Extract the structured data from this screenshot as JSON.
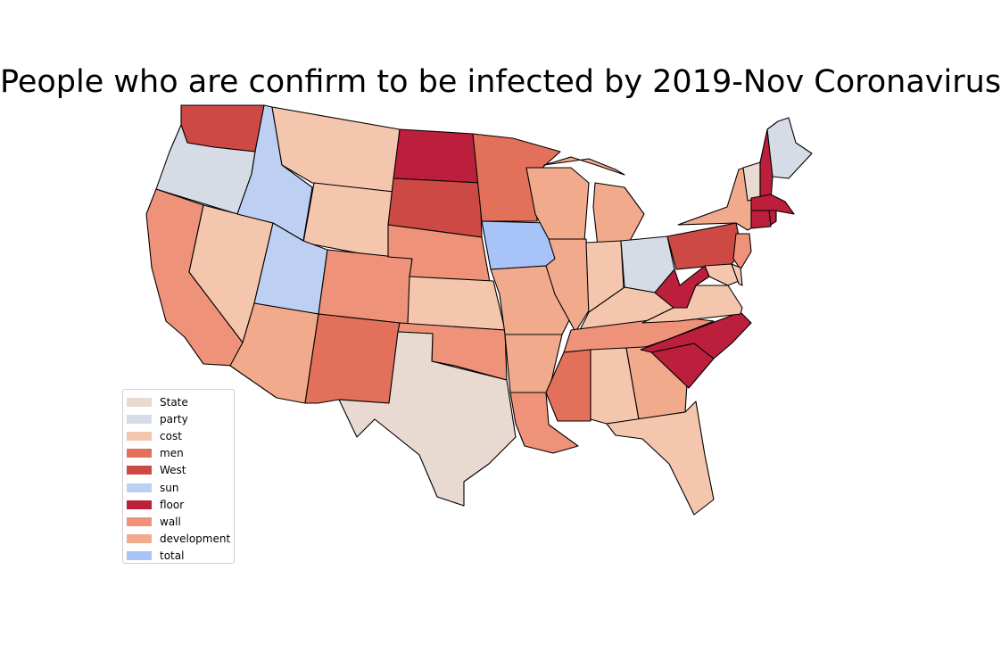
{
  "title": "People who are confirm to be infected by 2019-Nov Coronavirus",
  "legend": [
    {
      "label": "State",
      "color": "#e8d9d1"
    },
    {
      "label": "party",
      "color": "#d6dce6"
    },
    {
      "label": "cost",
      "color": "#f4c6ae"
    },
    {
      "label": "men",
      "color": "#e3705a"
    },
    {
      "label": "West",
      "color": "#cd4a44"
    },
    {
      "label": "sun",
      "color": "#bdd0f3"
    },
    {
      "label": "floor",
      "color": "#bb1f3b"
    },
    {
      "label": "wall",
      "color": "#ee9279"
    },
    {
      "label": "development",
      "color": "#f2aa8d"
    },
    {
      "label": "total",
      "color": "#a7c3f8"
    }
  ],
  "states": [
    {
      "name": "Washington",
      "category": "West"
    },
    {
      "name": "Oregon",
      "category": "party"
    },
    {
      "name": "California",
      "category": "wall"
    },
    {
      "name": "Nevada",
      "category": "cost"
    },
    {
      "name": "Idaho",
      "category": "sun"
    },
    {
      "name": "Montana",
      "category": "cost"
    },
    {
      "name": "Wyoming",
      "category": "cost"
    },
    {
      "name": "Utah",
      "category": "sun"
    },
    {
      "name": "Arizona",
      "category": "development"
    },
    {
      "name": "Colorado",
      "category": "wall"
    },
    {
      "name": "New Mexico",
      "category": "men"
    },
    {
      "name": "North Dakota",
      "category": "floor"
    },
    {
      "name": "South Dakota",
      "category": "West"
    },
    {
      "name": "Nebraska",
      "category": "wall"
    },
    {
      "name": "Kansas",
      "category": "cost"
    },
    {
      "name": "Oklahoma",
      "category": "wall"
    },
    {
      "name": "Texas",
      "category": "State"
    },
    {
      "name": "Minnesota",
      "category": "men"
    },
    {
      "name": "Iowa",
      "category": "total"
    },
    {
      "name": "Missouri",
      "category": "development"
    },
    {
      "name": "Arkansas",
      "category": "development"
    },
    {
      "name": "Louisiana",
      "category": "wall"
    },
    {
      "name": "Wisconsin",
      "category": "development"
    },
    {
      "name": "Illinois",
      "category": "development"
    },
    {
      "name": "Michigan",
      "category": "development"
    },
    {
      "name": "Indiana",
      "category": "cost"
    },
    {
      "name": "Ohio",
      "category": "party"
    },
    {
      "name": "Kentucky",
      "category": "cost"
    },
    {
      "name": "Tennessee",
      "category": "wall"
    },
    {
      "name": "Mississippi",
      "category": "men"
    },
    {
      "name": "Alabama",
      "category": "cost"
    },
    {
      "name": "Georgia",
      "category": "development"
    },
    {
      "name": "Florida",
      "category": "cost"
    },
    {
      "name": "South Carolina",
      "category": "floor"
    },
    {
      "name": "North Carolina",
      "category": "floor"
    },
    {
      "name": "Virginia",
      "category": "cost"
    },
    {
      "name": "West Virginia",
      "category": "floor"
    },
    {
      "name": "Pennsylvania",
      "category": "West"
    },
    {
      "name": "New York",
      "category": "development"
    },
    {
      "name": "New Jersey",
      "category": "wall"
    },
    {
      "name": "Maryland",
      "category": "cost"
    },
    {
      "name": "Delaware",
      "category": "cost"
    },
    {
      "name": "Vermont",
      "category": "State"
    },
    {
      "name": "New Hampshire",
      "category": "floor"
    },
    {
      "name": "Maine",
      "category": "party"
    },
    {
      "name": "Massachusetts",
      "category": "floor"
    },
    {
      "name": "Connecticut",
      "category": "floor"
    },
    {
      "name": "Rhode Island",
      "category": "floor"
    }
  ]
}
